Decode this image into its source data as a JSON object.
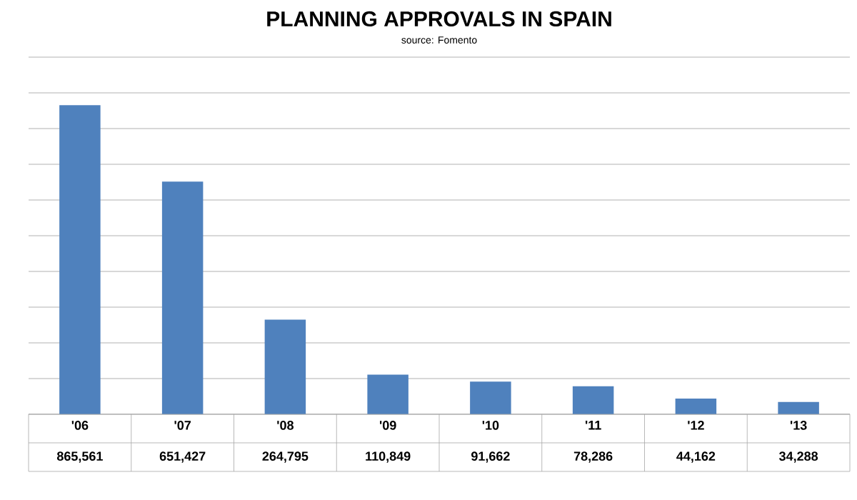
{
  "chart_data": {
    "type": "bar",
    "title": "PLANNING APPROVALS IN SPAIN",
    "subtitle": "source: Fomento",
    "categories": [
      "'06",
      "'07",
      "'08",
      "'09",
      "'10",
      "'11",
      "'12",
      "'13"
    ],
    "values": [
      865561,
      651427,
      264795,
      110849,
      91662,
      78286,
      44162,
      34288
    ],
    "value_labels": [
      "865,561",
      "651,427",
      "264,795",
      "110,849",
      "91,662",
      "78,286",
      "44,162",
      "34,288"
    ],
    "color": "#4f81bd",
    "ylim": [
      0,
      1000000
    ],
    "yticks": [
      {
        "value": 0,
        "label": null
      },
      {
        "value": 100000,
        "label": null
      },
      {
        "value": 200000,
        "label": null
      },
      {
        "value": 300000,
        "label": null
      },
      {
        "value": 400000,
        "label": null
      },
      {
        "value": 500000,
        "label": null
      },
      {
        "value": 600000,
        "label": null
      },
      {
        "value": 700000,
        "label": null
      },
      {
        "value": 800000,
        "label": null
      },
      {
        "value": 900000,
        "label": null
      },
      {
        "value": 1000000,
        "label": null
      }
    ],
    "grid": "y"
  }
}
